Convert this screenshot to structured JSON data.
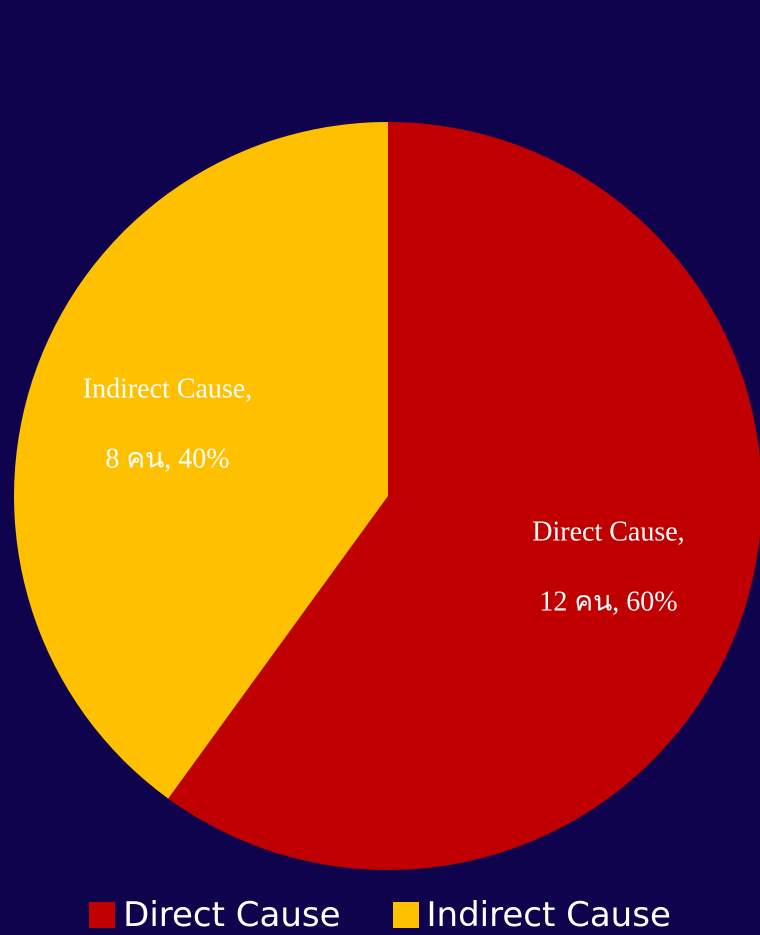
{
  "chart_data": {
    "type": "pie",
    "series": [
      {
        "name": "",
        "slices": [
          {
            "label": "Direct Cause",
            "value": 12,
            "percent": 60,
            "color": "#c00000",
            "data_label_line1": "Direct Cause,",
            "data_label_line2": "12 คน, 60%"
          },
          {
            "label": "Indirect Cause",
            "value": 8,
            "percent": 40,
            "color": "#ffc000",
            "data_label_line1": "Indirect Cause,",
            "data_label_line2": "8 คน, 40%"
          }
        ]
      }
    ],
    "title": "",
    "legend_position": "bottom",
    "background_color": "#10034d",
    "start_angle": "12 o'clock, clockwise"
  },
  "legend": {
    "items": [
      {
        "label": "Direct Cause",
        "color": "#c00000"
      },
      {
        "label": "Indirect Cause",
        "color": "#ffc000"
      }
    ]
  }
}
